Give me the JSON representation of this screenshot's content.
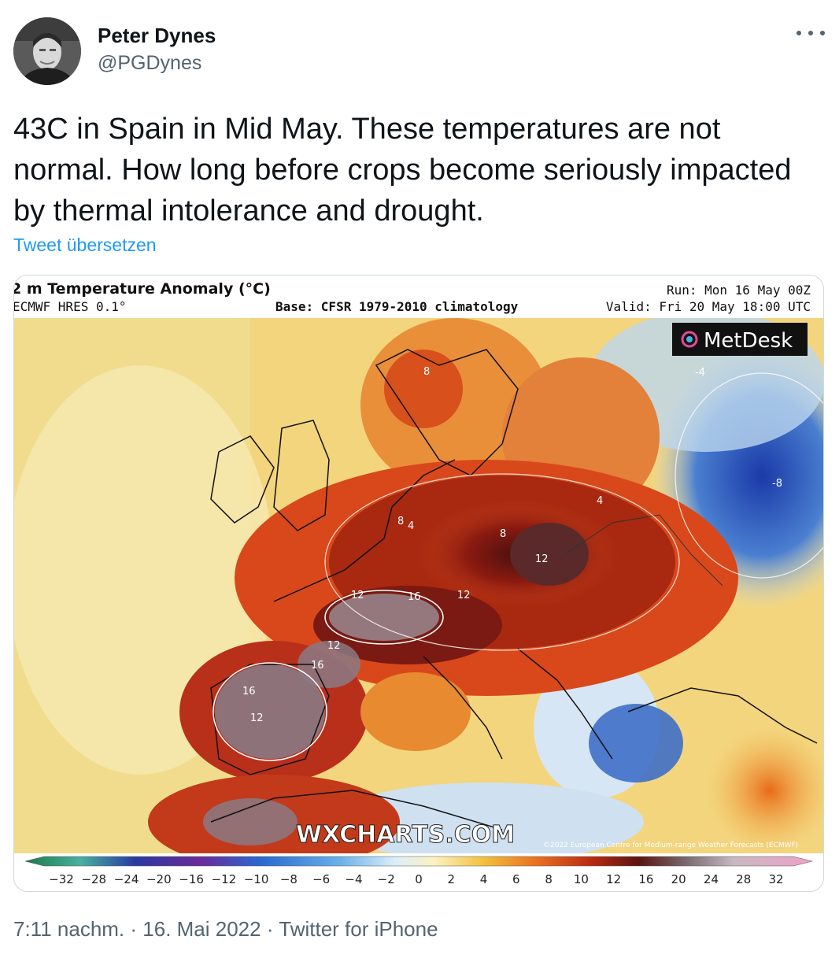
{
  "author": {
    "name": "Peter Dynes",
    "handle": "@PGDynes"
  },
  "tweet": {
    "text": "43C in Spain in Mid May. These temperatures are not normal. How long before crops become seriously impacted by thermal intolerance and drought.",
    "translate_label": "Tweet übersetzen"
  },
  "map": {
    "title": "2 m Temperature Anomaly (°C)",
    "model": "ECMWF HRES 0.1°",
    "base": "Base: CFSR 1979-2010 climatology",
    "run": "Run: Mon 16 May 00Z",
    "valid": "Valid: Fri 20 May 18:00 UTC",
    "brand": "MetDesk",
    "watermark": "WXCHARTS.COM",
    "copyright": "©2022 European Centre for Medium-range Weather Forecasts (ECMWF)",
    "contour_labels": [
      "8",
      "4",
      "8",
      "8",
      "12",
      "16",
      "12",
      "12",
      "16",
      "12",
      "16",
      "12",
      "-4",
      "-8",
      "4"
    ],
    "colorbar_ticks": [
      "−32",
      "−28",
      "−24",
      "−20",
      "−16",
      "−12",
      "−10",
      "−8",
      "−6",
      "−4",
      "−2",
      "0",
      "2",
      "4",
      "6",
      "8",
      "10",
      "12",
      "16",
      "20",
      "24",
      "28",
      "32"
    ]
  },
  "footer": {
    "time": "7:11 nachm.",
    "date": "16. Mai 2022",
    "source": "Twitter for iPhone",
    "separator": " · "
  },
  "colors": {
    "link": "#1d9bf0",
    "secondary": "#536471",
    "text": "#0f1419"
  }
}
